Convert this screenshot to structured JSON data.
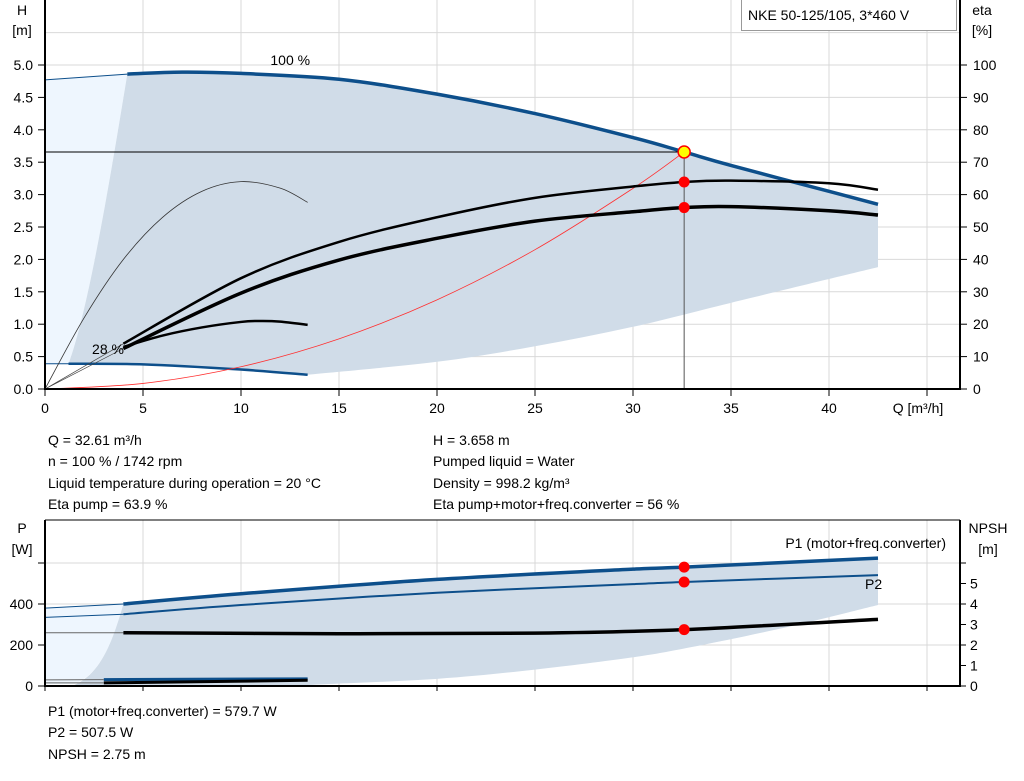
{
  "colors": {
    "band": "#d0dce8",
    "band_light": "#eef6fe",
    "curve_blue": "#0d4f8b",
    "system_curve": "#ff3030",
    "dot": "#ff0000",
    "op_point": "#ffff00",
    "grid": "#d9d9d9"
  },
  "chart_data": [
    {
      "type": "line",
      "title": "NKE 50-125/105, 3*460 V",
      "xlabel": "Q [m³/h]",
      "ylabel": "H\n[m]",
      "ylabel_lines": [
        "H",
        "[m]"
      ],
      "y2label_lines": [
        "eta",
        "[%]"
      ],
      "xlim": [
        0,
        47
      ],
      "ylim": [
        0,
        6
      ],
      "y2lim": [
        0,
        120
      ],
      "xticks": [
        "0",
        "5",
        "10",
        "15",
        "20",
        "25",
        "30",
        "35",
        "40"
      ],
      "yticks": [
        "0.0",
        "0.5",
        "1.0",
        "1.5",
        "2.0",
        "2.5",
        "3.0",
        "3.5",
        "4.0",
        "4.5",
        "5.0"
      ],
      "y2ticks": [
        "0",
        "10",
        "20",
        "30",
        "40",
        "50",
        "60",
        "70",
        "80",
        "90",
        "100"
      ],
      "grid": true,
      "curve_labels": [
        "100 %",
        "28 %"
      ],
      "series": [
        {
          "id": "h100",
          "axis": "H",
          "x": [
            0,
            4.2,
            7,
            10,
            15,
            20,
            25,
            30,
            32.61,
            35,
            40,
            42.5
          ],
          "y": [
            4.77,
            4.86,
            4.89,
            4.87,
            4.78,
            4.55,
            4.25,
            3.88,
            3.658,
            3.45,
            3.05,
            2.85
          ]
        },
        {
          "id": "h28",
          "axis": "H",
          "x": [
            0,
            1.2,
            5,
            10,
            13.4
          ],
          "y": [
            0.39,
            0.39,
            0.38,
            0.3,
            0.22
          ]
        },
        {
          "id": "eta_pump",
          "axis": "eta",
          "x": [
            4,
            10,
            15,
            20,
            25,
            30,
            32.61,
            35,
            40,
            42.5
          ],
          "y": [
            14,
            34.2,
            45.4,
            53,
            59,
            62.5,
            63.9,
            64.3,
            63.5,
            61.5
          ]
        },
        {
          "id": "eta_total",
          "axis": "eta",
          "x": [
            4,
            10,
            15,
            20,
            25,
            30,
            32.61,
            35,
            40,
            42.5
          ],
          "y": [
            12.5,
            29.6,
            39.8,
            46.5,
            51.8,
            54.7,
            56,
            56.3,
            55,
            53.7
          ]
        },
        {
          "id": "eta_pump_28",
          "axis": "eta",
          "x": [
            0,
            2,
            4,
            6,
            8,
            10,
            12,
            13.4
          ],
          "y": [
            0,
            22,
            40,
            53,
            61,
            64,
            62,
            57.6
          ]
        },
        {
          "id": "eta_total_28",
          "axis": "eta",
          "x": [
            4,
            6,
            8,
            10,
            11,
            12,
            13.4
          ],
          "y": [
            13,
            16.5,
            19,
            20.7,
            21,
            20.8,
            19.8
          ]
        },
        {
          "id": "system",
          "axis": "H",
          "x": [
            0,
            5,
            10,
            15,
            20,
            25,
            30,
            32.61
          ],
          "y": [
            0,
            0.086,
            0.344,
            0.774,
            1.376,
            2.15,
            3.096,
            3.658
          ]
        }
      ],
      "operating_point": {
        "Q": 32.61,
        "H": 3.658,
        "eta_pump": 63.9,
        "eta_total": 56
      }
    },
    {
      "type": "line",
      "ylabel_lines": [
        "P",
        "[W]"
      ],
      "y2label_lines": [
        "NPSH",
        "[m]"
      ],
      "xlim": [
        0,
        47
      ],
      "ylim": [
        0,
        600
      ],
      "y2lim": [
        0,
        6
      ],
      "yticks": [
        "0",
        "200",
        "400"
      ],
      "y2ticks": [
        "0",
        "1",
        "2",
        "3",
        "4",
        "5"
      ],
      "grid": true,
      "series": [
        {
          "id": "p1",
          "name": "P1 (motor+freq.converter)",
          "axis": "P",
          "x": [
            0,
            4,
            10,
            20,
            30,
            32.61,
            42.5
          ],
          "y": [
            380,
            400,
            450,
            520,
            570,
            579.7,
            624
          ]
        },
        {
          "id": "p2",
          "name": "P2",
          "axis": "P",
          "x": [
            0,
            4,
            10,
            20,
            30,
            32.61,
            42.5
          ],
          "y": [
            335,
            350,
            395,
            455,
            497,
            507.5,
            541
          ]
        },
        {
          "id": "npsh",
          "axis": "NPSH",
          "x": [
            0,
            4,
            15,
            25,
            32.61,
            42.5
          ],
          "y": [
            2.6,
            2.6,
            2.55,
            2.58,
            2.75,
            3.25
          ]
        },
        {
          "id": "p1_28",
          "axis": "P",
          "x": [
            0,
            3,
            13.4
          ],
          "y": [
            30,
            31,
            35
          ]
        },
        {
          "id": "npsh_28",
          "axis": "NPSH",
          "x": [
            0,
            3,
            13.4
          ],
          "y": [
            0.15,
            0.15,
            0.28
          ]
        }
      ],
      "operating_point": {
        "Q": 32.61,
        "P1": 579.7,
        "P2": 507.5,
        "NPSH": 2.75
      }
    }
  ],
  "info_top": {
    "left": [
      "Q = 32.61 m³/h",
      "n = 100 % / 1742 rpm",
      "Liquid temperature during operation = 20 °C",
      "Eta pump = 63.9 %"
    ],
    "right": [
      "H = 3.658 m",
      "Pumped liquid = Water",
      "Density = 998.2 kg/m³",
      "Eta pump+motor+freq.converter = 56 %"
    ]
  },
  "info_bottom": [
    "P1 (motor+freq.converter) = 579.7 W",
    "P2 = 507.5 W",
    "NPSH = 2.75 m"
  ]
}
